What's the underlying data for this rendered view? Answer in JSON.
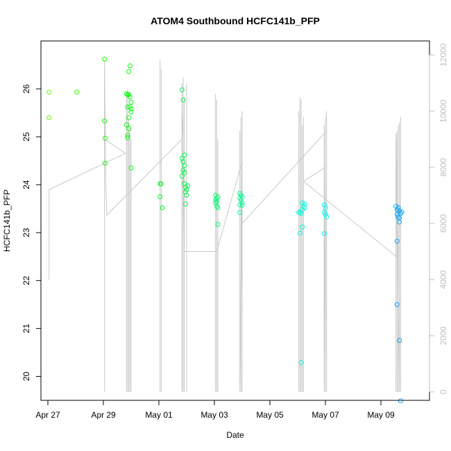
{
  "chart_data": {
    "type": "scatter",
    "title": "ATOM4 Southbound HCFC141b_PFP",
    "xlabel": "Date",
    "ylabel": "HCFC141b_PFP",
    "xlim": [
      "2016-04-26T18:00",
      "2016-05-10T18:00"
    ],
    "ylim": [
      19.5,
      27.0
    ],
    "x_ticks": [
      {
        "date": "2016-04-27T00:00",
        "label": "Apr 27"
      },
      {
        "date": "2016-04-29T00:00",
        "label": "Apr 29"
      },
      {
        "date": "2016-05-01T00:00",
        "label": "May 01"
      },
      {
        "date": "2016-05-03T00:00",
        "label": "May 03"
      },
      {
        "date": "2016-05-05T00:00",
        "label": "May 05"
      },
      {
        "date": "2016-05-07T00:00",
        "label": "May 07"
      },
      {
        "date": "2016-05-09T00:00",
        "label": "May 09"
      }
    ],
    "y_ticks": [
      20,
      21,
      22,
      23,
      24,
      25,
      26
    ],
    "y2_ticks": [
      0,
      2000,
      4000,
      6000,
      8000,
      10000,
      12000
    ],
    "y2lim": [
      -300,
      12500
    ],
    "grid": false,
    "point_color_scale": "green to blue by date",
    "points": [
      {
        "t": "2016-04-27T01:00",
        "y": 25.93
      },
      {
        "t": "2016-04-27T01:00",
        "y": 25.4
      },
      {
        "t": "2016-04-28T01:00",
        "y": 25.93
      },
      {
        "t": "2016-04-29T01:00",
        "y": 26.62
      },
      {
        "t": "2016-04-29T01:00",
        "y": 25.33
      },
      {
        "t": "2016-04-29T01:30",
        "y": 24.97
      },
      {
        "t": "2016-04-29T01:30",
        "y": 24.45
      },
      {
        "t": "2016-04-29T20:00",
        "y": 25.9
      },
      {
        "t": "2016-04-29T21:00",
        "y": 25.88
      },
      {
        "t": "2016-04-29T22:00",
        "y": 25.88
      },
      {
        "t": "2016-04-29T23:00",
        "y": 25.83
      },
      {
        "t": "2016-04-30T00:00",
        "y": 25.72
      },
      {
        "t": "2016-04-29T21:00",
        "y": 25.62
      },
      {
        "t": "2016-04-29T22:00",
        "y": 25.4
      },
      {
        "t": "2016-04-29T20:00",
        "y": 25.25
      },
      {
        "t": "2016-04-29T21:00",
        "y": 25.03
      },
      {
        "t": "2016-04-29T21:00",
        "y": 24.98
      },
      {
        "t": "2016-04-29T22:00",
        "y": 25.17
      },
      {
        "t": "2016-04-29T23:00",
        "y": 25.63
      },
      {
        "t": "2016-04-30T00:00",
        "y": 25.58
      },
      {
        "t": "2016-04-30T00:00",
        "y": 25.52
      },
      {
        "t": "2016-04-29T23:00",
        "y": 26.48
      },
      {
        "t": "2016-04-29T22:00",
        "y": 26.36
      },
      {
        "t": "2016-04-30T00:00",
        "y": 24.35
      },
      {
        "t": "2016-05-01T01:00",
        "y": 24.02
      },
      {
        "t": "2016-05-01T02:00",
        "y": 24.02
      },
      {
        "t": "2016-05-01T01:00",
        "y": 23.75
      },
      {
        "t": "2016-05-01T03:00",
        "y": 23.52
      },
      {
        "t": "2016-05-01T20:00",
        "y": 25.98
      },
      {
        "t": "2016-05-01T21:00",
        "y": 25.77
      },
      {
        "t": "2016-05-01T20:00",
        "y": 24.55
      },
      {
        "t": "2016-05-01T21:00",
        "y": 24.48
      },
      {
        "t": "2016-05-01T22:00",
        "y": 24.62
      },
      {
        "t": "2016-05-01T22:00",
        "y": 24.4
      },
      {
        "t": "2016-05-01T21:00",
        "y": 24.3
      },
      {
        "t": "2016-05-01T22:00",
        "y": 24.25
      },
      {
        "t": "2016-05-01T20:00",
        "y": 24.18
      },
      {
        "t": "2016-05-01T22:00",
        "y": 24.02
      },
      {
        "t": "2016-05-01T23:00",
        "y": 23.95
      },
      {
        "t": "2016-05-02T00:00",
        "y": 23.9
      },
      {
        "t": "2016-05-02T01:00",
        "y": 23.98
      },
      {
        "t": "2016-05-01T23:00",
        "y": 23.85
      },
      {
        "t": "2016-05-02T00:00",
        "y": 23.78
      },
      {
        "t": "2016-05-01T23:00",
        "y": 23.6
      },
      {
        "t": "2016-05-03T01:00",
        "y": 23.78
      },
      {
        "t": "2016-05-03T02:00",
        "y": 23.72
      },
      {
        "t": "2016-05-03T03:00",
        "y": 23.75
      },
      {
        "t": "2016-05-03T01:00",
        "y": 23.68
      },
      {
        "t": "2016-05-03T02:00",
        "y": 23.65
      },
      {
        "t": "2016-05-03T01:00",
        "y": 23.62
      },
      {
        "t": "2016-05-03T02:00",
        "y": 23.55
      },
      {
        "t": "2016-05-03T03:00",
        "y": 23.52
      },
      {
        "t": "2016-05-03T03:00",
        "y": 23.17
      },
      {
        "t": "2016-05-03T22:00",
        "y": 23.82
      },
      {
        "t": "2016-05-03T23:00",
        "y": 23.78
      },
      {
        "t": "2016-05-04T00:00",
        "y": 23.75
      },
      {
        "t": "2016-05-03T22:00",
        "y": 23.72
      },
      {
        "t": "2016-05-03T23:00",
        "y": 23.68
      },
      {
        "t": "2016-05-04T00:00",
        "y": 23.62
      },
      {
        "t": "2016-05-03T22:00",
        "y": 23.58
      },
      {
        "t": "2016-05-04T00:00",
        "y": 23.57
      },
      {
        "t": "2016-05-03T22:00",
        "y": 23.42
      },
      {
        "t": "2016-05-06T01:00",
        "y": 23.42
      },
      {
        "t": "2016-05-06T02:00",
        "y": 23.43
      },
      {
        "t": "2016-05-06T03:00",
        "y": 23.4
      },
      {
        "t": "2016-05-06T04:00",
        "y": 23.48
      },
      {
        "t": "2016-05-06T05:00",
        "y": 23.55
      },
      {
        "t": "2016-05-06T06:00",
        "y": 23.6
      },
      {
        "t": "2016-05-06T04:00",
        "y": 23.62
      },
      {
        "t": "2016-05-06T06:00",
        "y": 23.52
      },
      {
        "t": "2016-05-06T02:00",
        "y": 22.99
      },
      {
        "t": "2016-05-06T04:00",
        "y": 23.12
      },
      {
        "t": "2016-05-06T03:00",
        "y": 20.29
      },
      {
        "t": "2016-05-06T23:00",
        "y": 23.58
      },
      {
        "t": "2016-05-07T00:00",
        "y": 23.52
      },
      {
        "t": "2016-05-06T23:00",
        "y": 23.42
      },
      {
        "t": "2016-05-07T00:00",
        "y": 23.38
      },
      {
        "t": "2016-05-07T01:00",
        "y": 23.33
      },
      {
        "t": "2016-05-06T23:00",
        "y": 22.98
      },
      {
        "t": "2016-05-09T13:00",
        "y": 23.55
      },
      {
        "t": "2016-05-09T14:00",
        "y": 23.48
      },
      {
        "t": "2016-05-09T15:00",
        "y": 23.52
      },
      {
        "t": "2016-05-09T16:00",
        "y": 23.45
      },
      {
        "t": "2016-05-09T17:00",
        "y": 23.4
      },
      {
        "t": "2016-05-09T14:00",
        "y": 23.38
      },
      {
        "t": "2016-05-09T15:00",
        "y": 23.33
      },
      {
        "t": "2016-05-09T16:00",
        "y": 23.3
      },
      {
        "t": "2016-05-09T18:00",
        "y": 23.43
      },
      {
        "t": "2016-05-09T16:00",
        "y": 23.22
      },
      {
        "t": "2016-05-09T14:00",
        "y": 22.82
      },
      {
        "t": "2016-05-09T14:00",
        "y": 21.5
      },
      {
        "t": "2016-05-09T16:00",
        "y": 20.75
      },
      {
        "t": "2016-05-09T17:00",
        "y": 19.49
      }
    ],
    "altitude_series": [
      {
        "t": "2016-04-27T01:00",
        "alt": 4000
      },
      {
        "t": "2016-04-27T01:00",
        "alt": 7200
      },
      {
        "t": "2016-04-29T19:00",
        "alt": 8500
      },
      {
        "t": "2016-04-29T01:00",
        "alt": 9000
      },
      {
        "t": "2016-04-29T01:00",
        "alt": 11500
      },
      {
        "t": "2016-04-29T02:00",
        "alt": 7500
      },
      {
        "t": "2016-04-29T03:00",
        "alt": 6300
      },
      {
        "t": "2016-05-01T20:00",
        "alt": 9000
      },
      {
        "t": "2016-05-01T20:00",
        "alt": 200
      },
      {
        "t": "2016-05-01T20:00",
        "alt": 10000
      },
      {
        "t": "2016-05-01T21:00",
        "alt": 9000
      },
      {
        "t": "2016-05-01T22:00",
        "alt": 5000
      },
      {
        "t": "2016-05-03T02:00",
        "alt": 5000
      },
      {
        "t": "2016-05-04T00:00",
        "alt": 8200
      },
      {
        "t": "2016-05-03T22:00",
        "alt": 300
      },
      {
        "t": "2016-05-04T00:00",
        "alt": 6000
      },
      {
        "t": "2016-05-06T23:00",
        "alt": 9200
      },
      {
        "t": "2016-05-06T23:00",
        "alt": 300
      },
      {
        "t": "2016-05-07T00:00",
        "alt": 8000
      },
      {
        "t": "2016-05-06T05:00",
        "alt": 7500
      },
      {
        "t": "2016-05-09T14:00",
        "alt": 4800
      },
      {
        "t": "2016-05-09T13:00",
        "alt": 9200
      },
      {
        "t": "2016-05-09T16:00",
        "alt": 300
      }
    ],
    "altitude_spikes": [
      {
        "t": "2016-04-29T01:00",
        "top": 11800
      },
      {
        "t": "2016-04-29T20:00",
        "top": 10500
      },
      {
        "t": "2016-04-29T21:00",
        "top": 10800
      },
      {
        "t": "2016-04-29T22:00",
        "top": 9700
      },
      {
        "t": "2016-04-29T23:00",
        "top": 9500
      },
      {
        "t": "2016-04-30T00:00",
        "top": 9000
      },
      {
        "t": "2016-05-01T01:00",
        "top": 11800
      },
      {
        "t": "2016-05-01T02:00",
        "top": 11500
      },
      {
        "t": "2016-05-01T20:00",
        "top": 11000
      },
      {
        "t": "2016-05-01T21:00",
        "top": 11200
      },
      {
        "t": "2016-05-01T22:00",
        "top": 10500
      },
      {
        "t": "2016-05-02T00:00",
        "top": 11000
      },
      {
        "t": "2016-05-03T01:00",
        "top": 10600
      },
      {
        "t": "2016-05-03T02:00",
        "top": 10400
      },
      {
        "t": "2016-05-03T03:00",
        "top": 9000
      },
      {
        "t": "2016-05-03T22:00",
        "top": 9300
      },
      {
        "t": "2016-05-03T23:00",
        "top": 9800
      },
      {
        "t": "2016-05-04T00:00",
        "top": 10000
      },
      {
        "t": "2016-05-06T01:00",
        "top": 10000
      },
      {
        "t": "2016-05-06T02:00",
        "top": 10500
      },
      {
        "t": "2016-05-06T03:00",
        "top": 10400
      },
      {
        "t": "2016-05-06T04:00",
        "top": 9500
      },
      {
        "t": "2016-05-06T05:00",
        "top": 9800
      },
      {
        "t": "2016-05-06T23:00",
        "top": 9500
      },
      {
        "t": "2016-05-07T00:00",
        "top": 9800
      },
      {
        "t": "2016-05-07T01:00",
        "top": 10000
      },
      {
        "t": "2016-05-09T13:00",
        "top": 9000
      },
      {
        "t": "2016-05-09T14:00",
        "top": 9300
      },
      {
        "t": "2016-05-09T15:00",
        "top": 9500
      },
      {
        "t": "2016-05-09T16:00",
        "top": 9600
      },
      {
        "t": "2016-05-09T17:00",
        "top": 9800
      }
    ]
  }
}
